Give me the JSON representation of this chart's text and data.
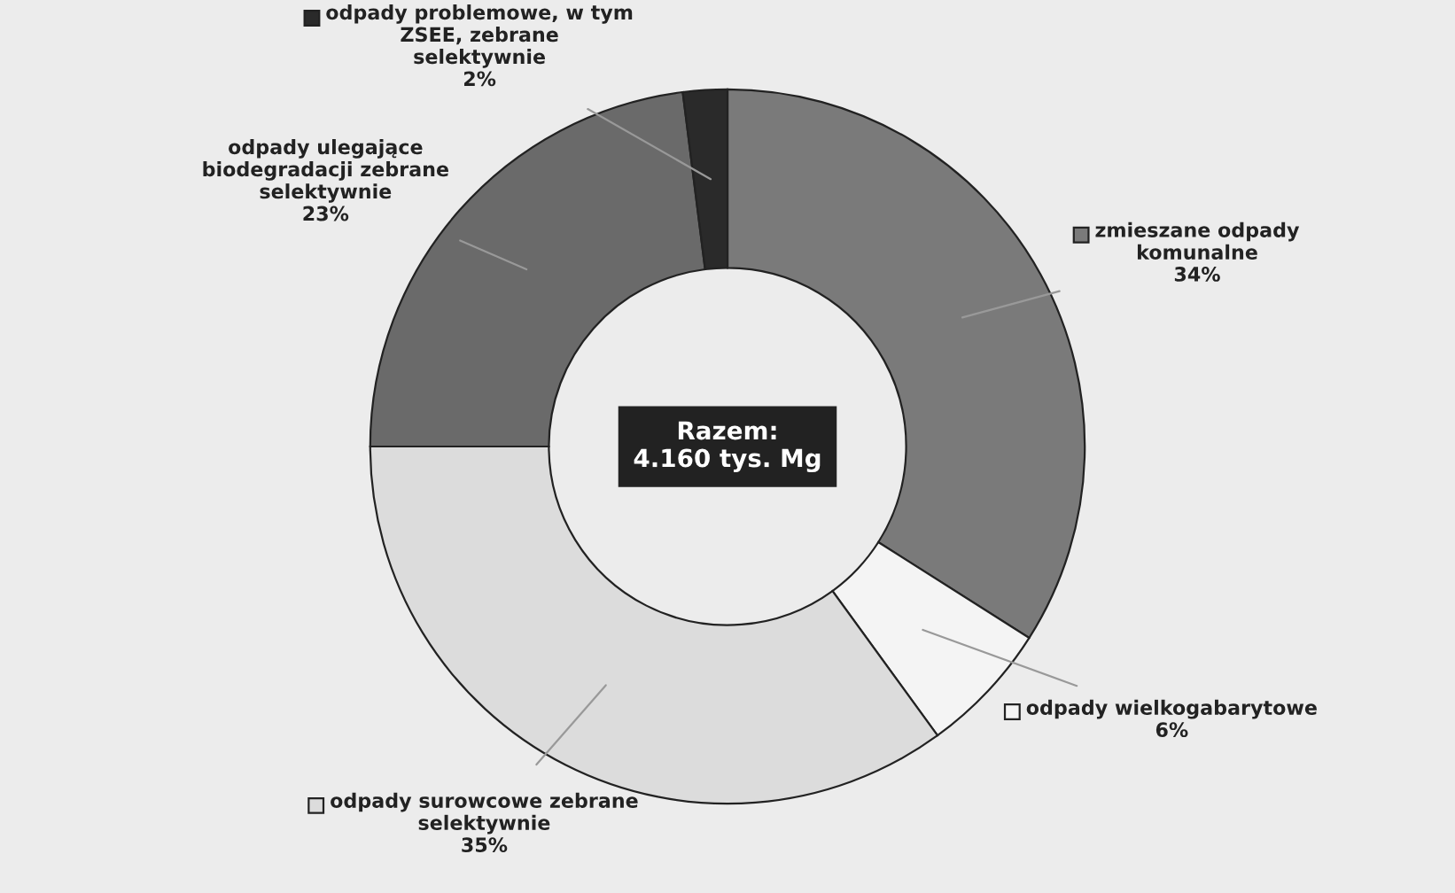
{
  "chart_data": {
    "type": "donut",
    "categories": [
      "zmieszane odpady komunalne",
      "odpady wielkogabarytowe",
      "odpady surowcowe zebrane selektywnie",
      "odpady ulegające biodegradacji zebrane selektywnie",
      "odpady problemowe, w tym ZSEE, zebrane selektywnie"
    ],
    "values": [
      34,
      6,
      35,
      23,
      2
    ],
    "colors": [
      "#7a7a7a",
      "#f4f4f4",
      "#dcdcdc",
      "#6a6a6a",
      "#2a2a2a"
    ],
    "value_labels": [
      "34%",
      "6%",
      "35%",
      "23%",
      "2%"
    ],
    "annotations": [
      "Razem:\n4.160 tys. Mg"
    ],
    "legend": "top right"
  }
}
